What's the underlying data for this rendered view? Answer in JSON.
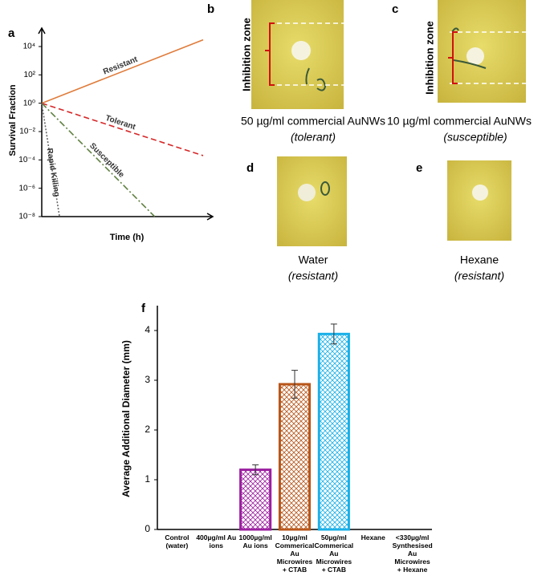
{
  "chart_data": [
    {
      "type": "line",
      "panel": "a",
      "ylabel": "Survival Fraction",
      "xlabel": "Time (h)",
      "yscale": "log",
      "xlim": [
        0,
        10
      ],
      "ylim": [
        1e-08,
        200000
      ],
      "yticks": [
        {
          "value": 10000,
          "label": "10⁴"
        },
        {
          "value": 100,
          "label": "10²"
        },
        {
          "value": 1,
          "label": "10⁰"
        },
        {
          "value": 0.01,
          "label": "10⁻²"
        },
        {
          "value": 0.0001,
          "label": "10⁻⁴"
        },
        {
          "value": 1e-06,
          "label": "10⁻⁶"
        },
        {
          "value": 1e-08,
          "label": "10⁻⁸"
        }
      ],
      "series": [
        {
          "name": "Resistant",
          "color": "#e07b39",
          "linestyle": "solid",
          "x": [
            0,
            10
          ],
          "values": [
            1,
            30000
          ]
        },
        {
          "name": "Tolerant",
          "color": "#d62728",
          "linestyle": "dashed",
          "x": [
            0,
            10
          ],
          "values": [
            1,
            0.0002
          ]
        },
        {
          "name": "Susceptible",
          "color": "#5f8040",
          "linestyle": "dashdot",
          "x": [
            0,
            7
          ],
          "values": [
            1,
            1e-08
          ]
        },
        {
          "name": "Rapid Killing",
          "color": "#666666",
          "linestyle": "dotted",
          "x": [
            0,
            1.1
          ],
          "values": [
            1,
            1e-08
          ]
        }
      ]
    },
    {
      "type": "bar",
      "panel": "f",
      "ylabel": "Average Additional Diameter (mm)",
      "categories": [
        "Control (water)",
        "400µg/ml Au ions",
        "1000µg/ml Au ions",
        "10µg/ml Commerical Au Microwires + CTAB",
        "50µg/ml Commerical Au Microwires + CTAB",
        "Hexane",
        "<330µg/ml Synthesised Au Microwires + Hexane"
      ],
      "values": [
        0,
        0,
        1.2,
        2.92,
        3.93,
        0,
        0
      ],
      "errors": [
        null,
        null,
        0.1,
        0.28,
        0.2,
        null,
        null
      ],
      "colors": [
        null,
        null,
        "#9b1fa0",
        "#b8561a",
        "#1ab0e8",
        null,
        null
      ],
      "ylim": [
        0,
        4.5
      ],
      "yticks": [
        0,
        1,
        2,
        3,
        4
      ]
    }
  ],
  "photos": [
    {
      "panel": "b",
      "zone_label": "Inhibition zone",
      "caption": "50 µg/ml commercial AuNWs",
      "result": "(tolerant)"
    },
    {
      "panel": "c",
      "zone_label": "Inhibition zone",
      "caption": "10 µg/ml commercial AuNWs",
      "result": "(susceptible)"
    },
    {
      "panel": "d",
      "caption": "Water",
      "result": "(resistant)"
    },
    {
      "panel": "e",
      "caption": "Hexane",
      "result": "(resistant)"
    }
  ]
}
